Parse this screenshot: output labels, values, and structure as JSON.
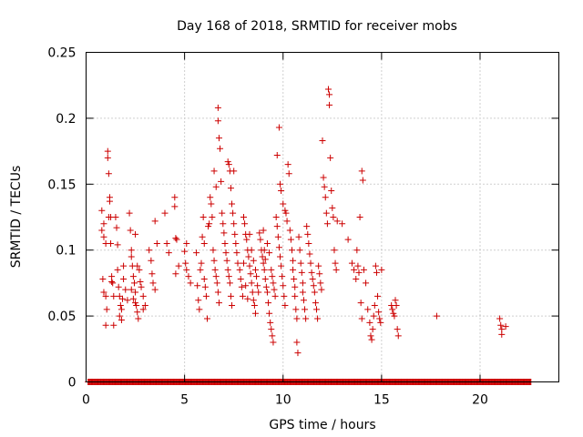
{
  "chart_data": {
    "type": "scatter",
    "title": "Day 168 of 2018, SRMTID for receiver mobs",
    "xlabel": "GPS time / hours",
    "ylabel": "SRMTID / TECUs",
    "xlim": [
      0,
      24
    ],
    "ylim": [
      0,
      0.25
    ],
    "xticks": [
      "0",
      "5",
      "10",
      "15",
      "20"
    ],
    "xtick_values": [
      0,
      5,
      10,
      15,
      20
    ],
    "yticks": [
      "0",
      "0.05",
      "0.1",
      "0.15",
      "0.2",
      "0.25"
    ],
    "ytick_values": [
      0,
      0.05,
      0.1,
      0.15,
      0.2,
      0.25
    ],
    "grid": true,
    "marker": "+",
    "color": "#cc0000",
    "zero_line_x_range": [
      0.1,
      22.6
    ],
    "series": [
      {
        "name": "SRMTID",
        "points": [
          [
            0.8,
            0.115
          ],
          [
            0.9,
            0.12
          ],
          [
            0.8,
            0.13
          ],
          [
            0.9,
            0.11
          ],
          [
            1.0,
            0.105
          ],
          [
            0.85,
            0.078
          ],
          [
            0.9,
            0.068
          ],
          [
            1.0,
            0.065
          ],
          [
            1.05,
            0.055
          ],
          [
            1.0,
            0.043
          ],
          [
            1.1,
            0.175
          ],
          [
            1.1,
            0.17
          ],
          [
            1.15,
            0.158
          ],
          [
            1.2,
            0.14
          ],
          [
            1.2,
            0.137
          ],
          [
            1.25,
            0.125
          ],
          [
            1.15,
            0.125
          ],
          [
            1.25,
            0.105
          ],
          [
            1.3,
            0.08
          ],
          [
            1.3,
            0.076
          ],
          [
            1.35,
            0.075
          ],
          [
            1.4,
            0.065
          ],
          [
            1.4,
            0.043
          ],
          [
            1.5,
            0.125
          ],
          [
            1.55,
            0.117
          ],
          [
            1.6,
            0.104
          ],
          [
            1.6,
            0.085
          ],
          [
            1.65,
            0.072
          ],
          [
            1.7,
            0.065
          ],
          [
            1.75,
            0.058
          ],
          [
            1.7,
            0.05
          ],
          [
            1.8,
            0.047
          ],
          [
            1.8,
            0.055
          ],
          [
            1.85,
            0.063
          ],
          [
            1.9,
            0.078
          ],
          [
            1.9,
            0.088
          ],
          [
            2.0,
            0.07
          ],
          [
            2.1,
            0.062
          ],
          [
            2.2,
            0.128
          ],
          [
            2.25,
            0.115
          ],
          [
            2.3,
            0.1
          ],
          [
            2.3,
            0.095
          ],
          [
            2.35,
            0.088
          ],
          [
            2.4,
            0.08
          ],
          [
            2.45,
            0.075
          ],
          [
            2.5,
            0.068
          ],
          [
            2.5,
            0.06
          ],
          [
            2.55,
            0.058
          ],
          [
            2.6,
            0.053
          ],
          [
            2.65,
            0.048
          ],
          [
            2.3,
            0.07
          ],
          [
            2.4,
            0.063
          ],
          [
            2.5,
            0.112
          ],
          [
            2.6,
            0.088
          ],
          [
            2.7,
            0.085
          ],
          [
            2.75,
            0.076
          ],
          [
            2.8,
            0.072
          ],
          [
            2.9,
            0.065
          ],
          [
            2.9,
            0.055
          ],
          [
            3.0,
            0.058
          ],
          [
            3.2,
            0.1
          ],
          [
            3.3,
            0.092
          ],
          [
            3.35,
            0.082
          ],
          [
            3.4,
            0.075
          ],
          [
            3.5,
            0.07
          ],
          [
            3.5,
            0.122
          ],
          [
            3.6,
            0.105
          ],
          [
            4.0,
            0.128
          ],
          [
            4.1,
            0.105
          ],
          [
            4.2,
            0.098
          ],
          [
            4.5,
            0.14
          ],
          [
            4.5,
            0.133
          ],
          [
            4.55,
            0.109
          ],
          [
            4.6,
            0.108
          ],
          [
            4.55,
            0.082
          ],
          [
            4.7,
            0.088
          ],
          [
            5.0,
            0.099
          ],
          [
            5.05,
            0.09
          ],
          [
            5.1,
            0.085
          ],
          [
            5.1,
            0.105
          ],
          [
            5.2,
            0.08
          ],
          [
            5.3,
            0.075
          ],
          [
            5.6,
            0.098
          ],
          [
            5.65,
            0.073
          ],
          [
            5.7,
            0.062
          ],
          [
            5.75,
            0.055
          ],
          [
            5.8,
            0.085
          ],
          [
            5.85,
            0.09
          ],
          [
            5.9,
            0.11
          ],
          [
            5.95,
            0.125
          ],
          [
            6.0,
            0.105
          ],
          [
            6.0,
            0.078
          ],
          [
            6.05,
            0.072
          ],
          [
            6.1,
            0.065
          ],
          [
            6.15,
            0.048
          ],
          [
            6.2,
            0.118
          ],
          [
            6.25,
            0.12
          ],
          [
            6.3,
            0.14
          ],
          [
            6.35,
            0.135
          ],
          [
            6.4,
            0.125
          ],
          [
            6.45,
            0.1
          ],
          [
            6.5,
            0.092
          ],
          [
            6.55,
            0.085
          ],
          [
            6.6,
            0.08
          ],
          [
            6.65,
            0.075
          ],
          [
            6.7,
            0.068
          ],
          [
            6.75,
            0.06
          ],
          [
            6.5,
            0.16
          ],
          [
            6.6,
            0.148
          ],
          [
            6.7,
            0.208
          ],
          [
            6.7,
            0.198
          ],
          [
            6.75,
            0.185
          ],
          [
            6.8,
            0.177
          ],
          [
            6.85,
            0.152
          ],
          [
            6.9,
            0.128
          ],
          [
            6.95,
            0.12
          ],
          [
            7.0,
            0.113
          ],
          [
            7.05,
            0.105
          ],
          [
            7.1,
            0.098
          ],
          [
            7.15,
            0.092
          ],
          [
            7.2,
            0.085
          ],
          [
            7.25,
            0.08
          ],
          [
            7.3,
            0.075
          ],
          [
            7.35,
            0.065
          ],
          [
            7.4,
            0.058
          ],
          [
            7.2,
            0.167
          ],
          [
            7.25,
            0.165
          ],
          [
            7.3,
            0.16
          ],
          [
            7.35,
            0.147
          ],
          [
            7.4,
            0.135
          ],
          [
            7.45,
            0.128
          ],
          [
            7.5,
            0.12
          ],
          [
            7.55,
            0.112
          ],
          [
            7.6,
            0.105
          ],
          [
            7.65,
            0.098
          ],
          [
            7.7,
            0.09
          ],
          [
            7.5,
            0.16
          ],
          [
            7.8,
            0.085
          ],
          [
            7.85,
            0.078
          ],
          [
            7.9,
            0.072
          ],
          [
            7.95,
            0.065
          ],
          [
            8.0,
            0.125
          ],
          [
            8.05,
            0.12
          ],
          [
            8.1,
            0.112
          ],
          [
            8.15,
            0.108
          ],
          [
            8.2,
            0.1
          ],
          [
            8.25,
            0.095
          ],
          [
            8.3,
            0.088
          ],
          [
            8.35,
            0.082
          ],
          [
            8.4,
            0.075
          ],
          [
            8.45,
            0.068
          ],
          [
            8.5,
            0.062
          ],
          [
            8.55,
            0.058
          ],
          [
            8.6,
            0.052
          ],
          [
            8.0,
            0.09
          ],
          [
            8.1,
            0.073
          ],
          [
            8.2,
            0.063
          ],
          [
            8.3,
            0.112
          ],
          [
            8.4,
            0.1
          ],
          [
            8.5,
            0.092
          ],
          [
            8.6,
            0.085
          ],
          [
            8.65,
            0.08
          ],
          [
            8.7,
            0.073
          ],
          [
            8.75,
            0.068
          ],
          [
            8.8,
            0.113
          ],
          [
            8.85,
            0.108
          ],
          [
            8.9,
            0.1
          ],
          [
            8.95,
            0.095
          ],
          [
            9.0,
            0.09
          ],
          [
            9.05,
            0.085
          ],
          [
            9.1,
            0.078
          ],
          [
            9.15,
            0.072
          ],
          [
            9.2,
            0.068
          ],
          [
            9.25,
            0.06
          ],
          [
            9.3,
            0.052
          ],
          [
            9.35,
            0.045
          ],
          [
            9.4,
            0.04
          ],
          [
            9.45,
            0.035
          ],
          [
            9.5,
            0.03
          ],
          [
            9.0,
            0.115
          ],
          [
            9.05,
            0.1
          ],
          [
            9.1,
            0.093
          ],
          [
            9.2,
            0.105
          ],
          [
            9.3,
            0.098
          ],
          [
            9.4,
            0.085
          ],
          [
            9.45,
            0.08
          ],
          [
            9.5,
            0.075
          ],
          [
            9.55,
            0.07
          ],
          [
            9.6,
            0.065
          ],
          [
            9.65,
            0.125
          ],
          [
            9.7,
            0.118
          ],
          [
            9.75,
            0.11
          ],
          [
            9.8,
            0.102
          ],
          [
            9.85,
            0.095
          ],
          [
            9.9,
            0.088
          ],
          [
            9.95,
            0.08
          ],
          [
            10.0,
            0.073
          ],
          [
            10.05,
            0.065
          ],
          [
            10.1,
            0.058
          ],
          [
            9.7,
            0.172
          ],
          [
            9.8,
            0.193
          ],
          [
            9.85,
            0.15
          ],
          [
            9.9,
            0.145
          ],
          [
            10.0,
            0.135
          ],
          [
            10.1,
            0.13
          ],
          [
            10.15,
            0.128
          ],
          [
            10.2,
            0.122
          ],
          [
            10.25,
            0.165
          ],
          [
            10.3,
            0.158
          ],
          [
            10.35,
            0.115
          ],
          [
            10.4,
            0.108
          ],
          [
            10.45,
            0.1
          ],
          [
            10.5,
            0.092
          ],
          [
            10.5,
            0.085
          ],
          [
            10.55,
            0.078
          ],
          [
            10.6,
            0.072
          ],
          [
            10.6,
            0.065
          ],
          [
            10.65,
            0.055
          ],
          [
            10.7,
            0.048
          ],
          [
            10.7,
            0.03
          ],
          [
            10.75,
            0.022
          ],
          [
            10.8,
            0.11
          ],
          [
            10.85,
            0.1
          ],
          [
            10.9,
            0.09
          ],
          [
            10.95,
            0.083
          ],
          [
            11.0,
            0.075
          ],
          [
            11.0,
            0.068
          ],
          [
            11.05,
            0.062
          ],
          [
            11.1,
            0.055
          ],
          [
            11.15,
            0.048
          ],
          [
            11.2,
            0.118
          ],
          [
            11.25,
            0.112
          ],
          [
            11.3,
            0.105
          ],
          [
            11.35,
            0.097
          ],
          [
            11.4,
            0.09
          ],
          [
            11.45,
            0.083
          ],
          [
            11.5,
            0.078
          ],
          [
            11.55,
            0.073
          ],
          [
            11.6,
            0.068
          ],
          [
            11.65,
            0.06
          ],
          [
            11.7,
            0.055
          ],
          [
            11.75,
            0.048
          ],
          [
            11.8,
            0.088
          ],
          [
            11.85,
            0.082
          ],
          [
            11.9,
            0.075
          ],
          [
            11.95,
            0.07
          ],
          [
            12.0,
            0.183
          ],
          [
            12.05,
            0.155
          ],
          [
            12.1,
            0.148
          ],
          [
            12.15,
            0.14
          ],
          [
            12.2,
            0.128
          ],
          [
            12.25,
            0.12
          ],
          [
            12.3,
            0.222
          ],
          [
            12.35,
            0.218
          ],
          [
            12.35,
            0.21
          ],
          [
            12.4,
            0.17
          ],
          [
            12.45,
            0.145
          ],
          [
            12.5,
            0.132
          ],
          [
            12.55,
            0.125
          ],
          [
            12.6,
            0.1
          ],
          [
            12.65,
            0.09
          ],
          [
            12.7,
            0.085
          ],
          [
            12.75,
            0.122
          ],
          [
            13.0,
            0.12
          ],
          [
            13.3,
            0.108
          ],
          [
            13.5,
            0.09
          ],
          [
            13.6,
            0.085
          ],
          [
            13.7,
            0.078
          ],
          [
            13.75,
            0.1
          ],
          [
            13.8,
            0.088
          ],
          [
            13.85,
            0.083
          ],
          [
            13.9,
            0.125
          ],
          [
            13.95,
            0.06
          ],
          [
            14.0,
            0.048
          ],
          [
            14.0,
            0.16
          ],
          [
            14.05,
            0.153
          ],
          [
            14.1,
            0.085
          ],
          [
            14.2,
            0.075
          ],
          [
            14.3,
            0.055
          ],
          [
            14.4,
            0.045
          ],
          [
            14.45,
            0.035
          ],
          [
            14.5,
            0.032
          ],
          [
            14.55,
            0.04
          ],
          [
            14.6,
            0.05
          ],
          [
            14.65,
            0.058
          ],
          [
            14.7,
            0.088
          ],
          [
            14.75,
            0.083
          ],
          [
            14.8,
            0.065
          ],
          [
            14.85,
            0.053
          ],
          [
            14.9,
            0.048
          ],
          [
            14.95,
            0.045
          ],
          [
            15.0,
            0.085
          ],
          [
            15.5,
            0.058
          ],
          [
            15.55,
            0.055
          ],
          [
            15.6,
            0.052
          ],
          [
            15.65,
            0.05
          ],
          [
            15.7,
            0.062
          ],
          [
            15.75,
            0.058
          ],
          [
            15.8,
            0.04
          ],
          [
            15.85,
            0.035
          ],
          [
            17.8,
            0.05
          ],
          [
            21.0,
            0.048
          ],
          [
            21.05,
            0.043
          ],
          [
            21.1,
            0.04
          ],
          [
            21.1,
            0.036
          ],
          [
            21.3,
            0.042
          ]
        ]
      }
    ]
  }
}
